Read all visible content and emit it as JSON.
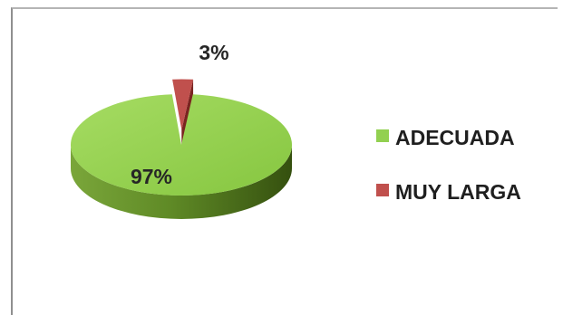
{
  "chart_data": {
    "type": "pie",
    "title": "",
    "slices": [
      {
        "label": "ADECUADA",
        "value": 97,
        "display": "97%",
        "color": "#92D050"
      },
      {
        "label": "MUY LARGA",
        "value": 3,
        "display": "3%",
        "color": "#C0504D"
      }
    ],
    "style": "3d-exploded",
    "legend_position": "right"
  }
}
